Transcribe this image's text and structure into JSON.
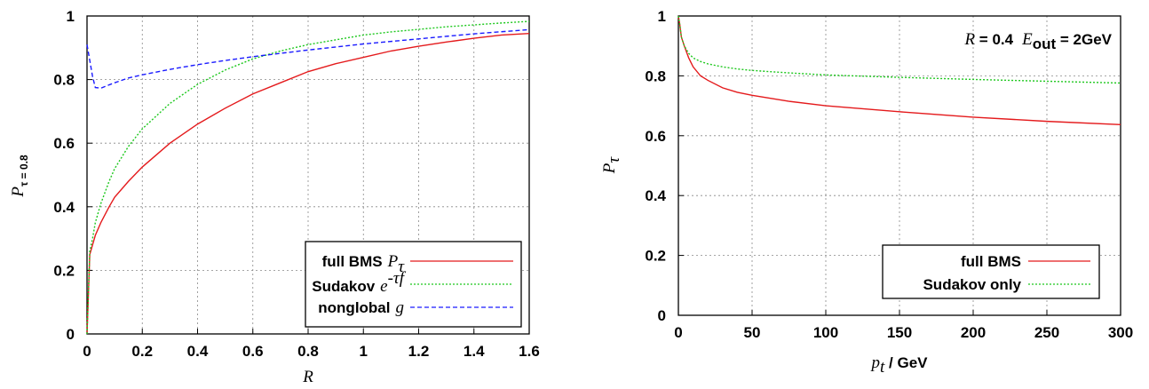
{
  "chart_data": [
    {
      "type": "line",
      "xlabel": "R",
      "ylabel": "P",
      "ylabel_sub": "τ = 0.8",
      "xlim": [
        0,
        1.6
      ],
      "ylim": [
        0,
        1
      ],
      "x_ticks": [
        "0",
        "0.2",
        "0.4",
        "0.6",
        "0.8",
        "1",
        "1.2",
        "1.4",
        "1.6"
      ],
      "y_ticks": [
        "0",
        "0.2",
        "0.4",
        "0.6",
        "0.8",
        "1"
      ],
      "grid": true,
      "legend_position": "bottom-right",
      "series": [
        {
          "name": "full BMS",
          "legend_math": "P",
          "legend_math_sub": "τ",
          "color": "#e41a1c",
          "style": "solid",
          "x": [
            0,
            0.01,
            0.02,
            0.03,
            0.05,
            0.08,
            0.1,
            0.15,
            0.2,
            0.3,
            0.4,
            0.5,
            0.6,
            0.7,
            0.8,
            0.9,
            1.0,
            1.1,
            1.2,
            1.3,
            1.4,
            1.5,
            1.6
          ],
          "y": [
            0.0,
            0.25,
            0.28,
            0.31,
            0.35,
            0.4,
            0.43,
            0.48,
            0.525,
            0.6,
            0.66,
            0.71,
            0.755,
            0.79,
            0.825,
            0.85,
            0.87,
            0.89,
            0.905,
            0.918,
            0.93,
            0.94,
            0.945
          ]
        },
        {
          "name": "Sudakov",
          "legend_math": "e",
          "legend_math_sup": "-τf",
          "color": "#1ec81e",
          "style": "dotted",
          "x": [
            0,
            0.01,
            0.02,
            0.03,
            0.05,
            0.08,
            0.1,
            0.15,
            0.2,
            0.3,
            0.4,
            0.5,
            0.6,
            0.7,
            0.8,
            0.9,
            1.0,
            1.1,
            1.2,
            1.3,
            1.4,
            1.5,
            1.6
          ],
          "y": [
            0.0,
            0.26,
            0.3,
            0.35,
            0.41,
            0.48,
            0.52,
            0.59,
            0.645,
            0.725,
            0.785,
            0.83,
            0.865,
            0.89,
            0.91,
            0.925,
            0.94,
            0.95,
            0.958,
            0.966,
            0.972,
            0.978,
            0.983
          ]
        },
        {
          "name": "nonglobal",
          "legend_math": "g",
          "color": "#1a1aff",
          "style": "dashed",
          "x": [
            0,
            0.01,
            0.02,
            0.03,
            0.05,
            0.07,
            0.1,
            0.15,
            0.2,
            0.3,
            0.4,
            0.5,
            0.6,
            0.8,
            1.0,
            1.2,
            1.4,
            1.6
          ],
          "y": [
            0.91,
            0.86,
            0.81,
            0.775,
            0.773,
            0.78,
            0.79,
            0.805,
            0.815,
            0.832,
            0.847,
            0.86,
            0.872,
            0.893,
            0.912,
            0.928,
            0.944,
            0.957
          ]
        }
      ]
    },
    {
      "type": "line",
      "xlabel": "p",
      "xlabel_sub": "t",
      "xlabel_unit": " / GeV",
      "ylabel": "P",
      "ylabel_sub": "τ",
      "xlim": [
        0,
        300
      ],
      "ylim": [
        0,
        1
      ],
      "x_ticks": [
        "0",
        "50",
        "100",
        "150",
        "200",
        "250",
        "300"
      ],
      "y_ticks": [
        "0",
        "0.2",
        "0.4",
        "0.6",
        "0.8",
        "1"
      ],
      "grid": true,
      "legend_position": "bottom-right",
      "annotation": {
        "r_sym": "R",
        "r_text": " = 0.4",
        "e_sym": "E",
        "e_sub": "out",
        "e_text": " = 2GeV"
      },
      "series": [
        {
          "name": "full BMS",
          "color": "#e41a1c",
          "style": "solid",
          "x": [
            0,
            1,
            2,
            4,
            7,
            10,
            15,
            20,
            30,
            40,
            50,
            75,
            100,
            150,
            200,
            250,
            300
          ],
          "y": [
            1.0,
            0.97,
            0.93,
            0.9,
            0.86,
            0.83,
            0.8,
            0.785,
            0.76,
            0.745,
            0.735,
            0.715,
            0.7,
            0.68,
            0.662,
            0.648,
            0.637
          ]
        },
        {
          "name": "Sudakov only",
          "color": "#1ec81e",
          "style": "dotted",
          "x": [
            0,
            1,
            2,
            4,
            7,
            10,
            15,
            20,
            30,
            40,
            50,
            75,
            100,
            150,
            200,
            250,
            300
          ],
          "y": [
            1.0,
            0.97,
            0.93,
            0.9,
            0.875,
            0.86,
            0.848,
            0.84,
            0.83,
            0.823,
            0.818,
            0.81,
            0.803,
            0.795,
            0.788,
            0.782,
            0.776
          ]
        }
      ]
    }
  ]
}
